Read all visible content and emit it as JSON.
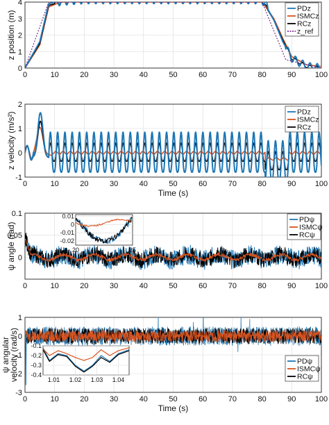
{
  "colors": {
    "pd": "#1f77b4",
    "ismc": "#d9531e",
    "rc": "#000000",
    "ref": "#7e2f8e"
  },
  "chart_data": [
    {
      "id": "z-position",
      "type": "line",
      "ylabel": "z position (m)",
      "xlabel": "",
      "xlim": [
        0,
        100
      ],
      "ylim": [
        0,
        4
      ],
      "xticks": [
        0,
        10,
        20,
        30,
        40,
        50,
        60,
        70,
        80,
        90,
        100
      ],
      "xtick_labels": [
        "0",
        "10",
        "20",
        "30",
        "40",
        "50",
        "60",
        "70",
        "80",
        "90",
        "100"
      ],
      "yticks": [
        0,
        1,
        2,
        3,
        4
      ],
      "grid": true,
      "legend": {
        "position": "top-right",
        "entries": [
          "PDz",
          "ISMCz",
          "RCz",
          "z_ref"
        ]
      },
      "series": [
        {
          "name": "PDz",
          "color": "#1f77b4",
          "x": [
            0,
            5,
            8,
            12,
            20,
            40,
            60,
            80,
            84,
            87,
            90,
            95,
            100
          ],
          "y": [
            0,
            1.6,
            3.9,
            4.1,
            4.2,
            4.2,
            4.2,
            4.2,
            2.9,
            1.6,
            0.6,
            0.1,
            0.0
          ],
          "oscillation_amplitude": 0.3
        },
        {
          "name": "ISMCz",
          "color": "#d9531e",
          "x": [
            0,
            5,
            8,
            12,
            20,
            40,
            60,
            80,
            84,
            87,
            90,
            95,
            100
          ],
          "y": [
            0,
            1.4,
            3.7,
            4.0,
            4.0,
            4.0,
            4.0,
            4.0,
            3.0,
            1.8,
            0.7,
            0.2,
            0.1
          ]
        },
        {
          "name": "RCz",
          "color": "#000000",
          "x": [
            0,
            5,
            8,
            12,
            20,
            40,
            60,
            80,
            84,
            87,
            90,
            95,
            100
          ],
          "y": [
            0,
            1.5,
            3.8,
            4.0,
            4.1,
            4.1,
            4.1,
            4.1,
            2.9,
            1.7,
            0.6,
            0.1,
            0.0
          ],
          "oscillation_amplitude": 0.12
        },
        {
          "name": "z_ref",
          "color": "#7e2f8e",
          "dashed": true,
          "x": [
            0,
            8,
            80,
            88,
            100
          ],
          "y": [
            0,
            4,
            4,
            0.5,
            0
          ]
        }
      ]
    },
    {
      "id": "z-velocity",
      "type": "line",
      "ylabel": "z velocity (m/s²)",
      "xlabel": "Time (s)",
      "xlim": [
        0,
        100
      ],
      "ylim": [
        -1,
        2
      ],
      "xticks": [
        0,
        10,
        20,
        30,
        40,
        50,
        60,
        70,
        80,
        90,
        100
      ],
      "xtick_labels": [
        "0",
        "10",
        "20",
        "30",
        "40",
        "50",
        "60",
        "70",
        "80",
        "90",
        "100"
      ],
      "yticks": [
        -1,
        0,
        1,
        2
      ],
      "grid": true,
      "legend": {
        "position": "top-right",
        "entries": [
          "PDz",
          "ISMCz",
          "RCz"
        ]
      },
      "series": [
        {
          "name": "PDz",
          "color": "#1f77b4",
          "peak": 1.85,
          "oscillation_max": 0.85,
          "oscillation_min": -0.8
        },
        {
          "name": "ISMCz",
          "color": "#d9531e",
          "peak": 1.15,
          "steady": 0.0
        },
        {
          "name": "RCz",
          "color": "#000000",
          "peak": 1.5,
          "oscillation_max": 0.4,
          "oscillation_min": -0.35
        }
      ]
    },
    {
      "id": "psi-angle",
      "type": "line",
      "ylabel": "ψ angle (rad)",
      "xlabel": "",
      "xlim": [
        0,
        100
      ],
      "ylim": [
        -0.05,
        0.1
      ],
      "xticks": [
        0,
        10,
        20,
        30,
        40,
        50,
        60,
        70,
        80,
        90,
        100
      ],
      "xtick_labels": [
        "0",
        "10",
        "20",
        "30",
        "40",
        "50",
        "60",
        "70",
        "80",
        "90",
        "100"
      ],
      "yticks": [
        0,
        0.05,
        0.1
      ],
      "ytick_labels": [
        "0",
        "0.05",
        "0.1"
      ],
      "grid": true,
      "legend": {
        "position": "top-right",
        "entries": [
          "PDψ",
          "ISMCψ",
          "RCψ"
        ]
      },
      "series": [
        {
          "name": "PDψ",
          "color": "#1f77b4",
          "noise_amplitude": 0.022
        },
        {
          "name": "ISMCψ",
          "color": "#d9531e",
          "noise_amplitude": 0.004
        },
        {
          "name": "RCψ",
          "color": "#000000",
          "noise_amplitude": 0.018
        }
      ],
      "inset": {
        "xlim": [
          20,
          25
        ],
        "ylim": [
          -0.025,
          0.012
        ],
        "xticks": [
          20,
          25
        ],
        "yticks": [
          0.01,
          0,
          -0.01,
          -0.02
        ],
        "ytick_labels": [
          "0.01",
          "0",
          "-0.01",
          "-0.02"
        ]
      }
    },
    {
      "id": "psi-angular-velocity",
      "type": "line",
      "ylabel": "ψ angular velocity (rad/s)",
      "ylabel_lines": [
        "ψ angular",
        "velocity (rad/s)"
      ],
      "xlabel": "Time (s)",
      "xlim": [
        0,
        100
      ],
      "ylim": [
        -3,
        1
      ],
      "xticks": [
        0,
        10,
        20,
        30,
        40,
        50,
        60,
        70,
        80,
        90,
        100
      ],
      "xtick_labels": [
        "0",
        "10",
        "20",
        "30",
        "40",
        "50",
        "60",
        "70",
        "80",
        "90",
        "100"
      ],
      "yticks": [
        -3,
        -2,
        -1,
        0,
        1
      ],
      "grid": true,
      "legend": {
        "position": "bottom-right",
        "entries": [
          "PDψ",
          "ISMCψ",
          "RCψ"
        ]
      },
      "series": [
        {
          "name": "PDψ",
          "color": "#1f77b4",
          "noise_amplitude": 0.5
        },
        {
          "name": "ISMCψ",
          "color": "#d9531e",
          "noise_amplitude": 0.3
        },
        {
          "name": "RCψ",
          "color": "#000000",
          "noise_amplitude": 0.42
        }
      ],
      "inset": {
        "xlim": [
          1.005,
          1.045
        ],
        "ylim": [
          -0.4,
          -0.1
        ],
        "xticks": [
          1.01,
          1.02,
          1.03,
          1.04
        ],
        "yticks": [
          -0.1,
          -0.2,
          -0.3,
          -0.4
        ],
        "ytick_labels": [
          "-0.1",
          "-0.2",
          "-0.3",
          "-0.4"
        ]
      }
    }
  ]
}
